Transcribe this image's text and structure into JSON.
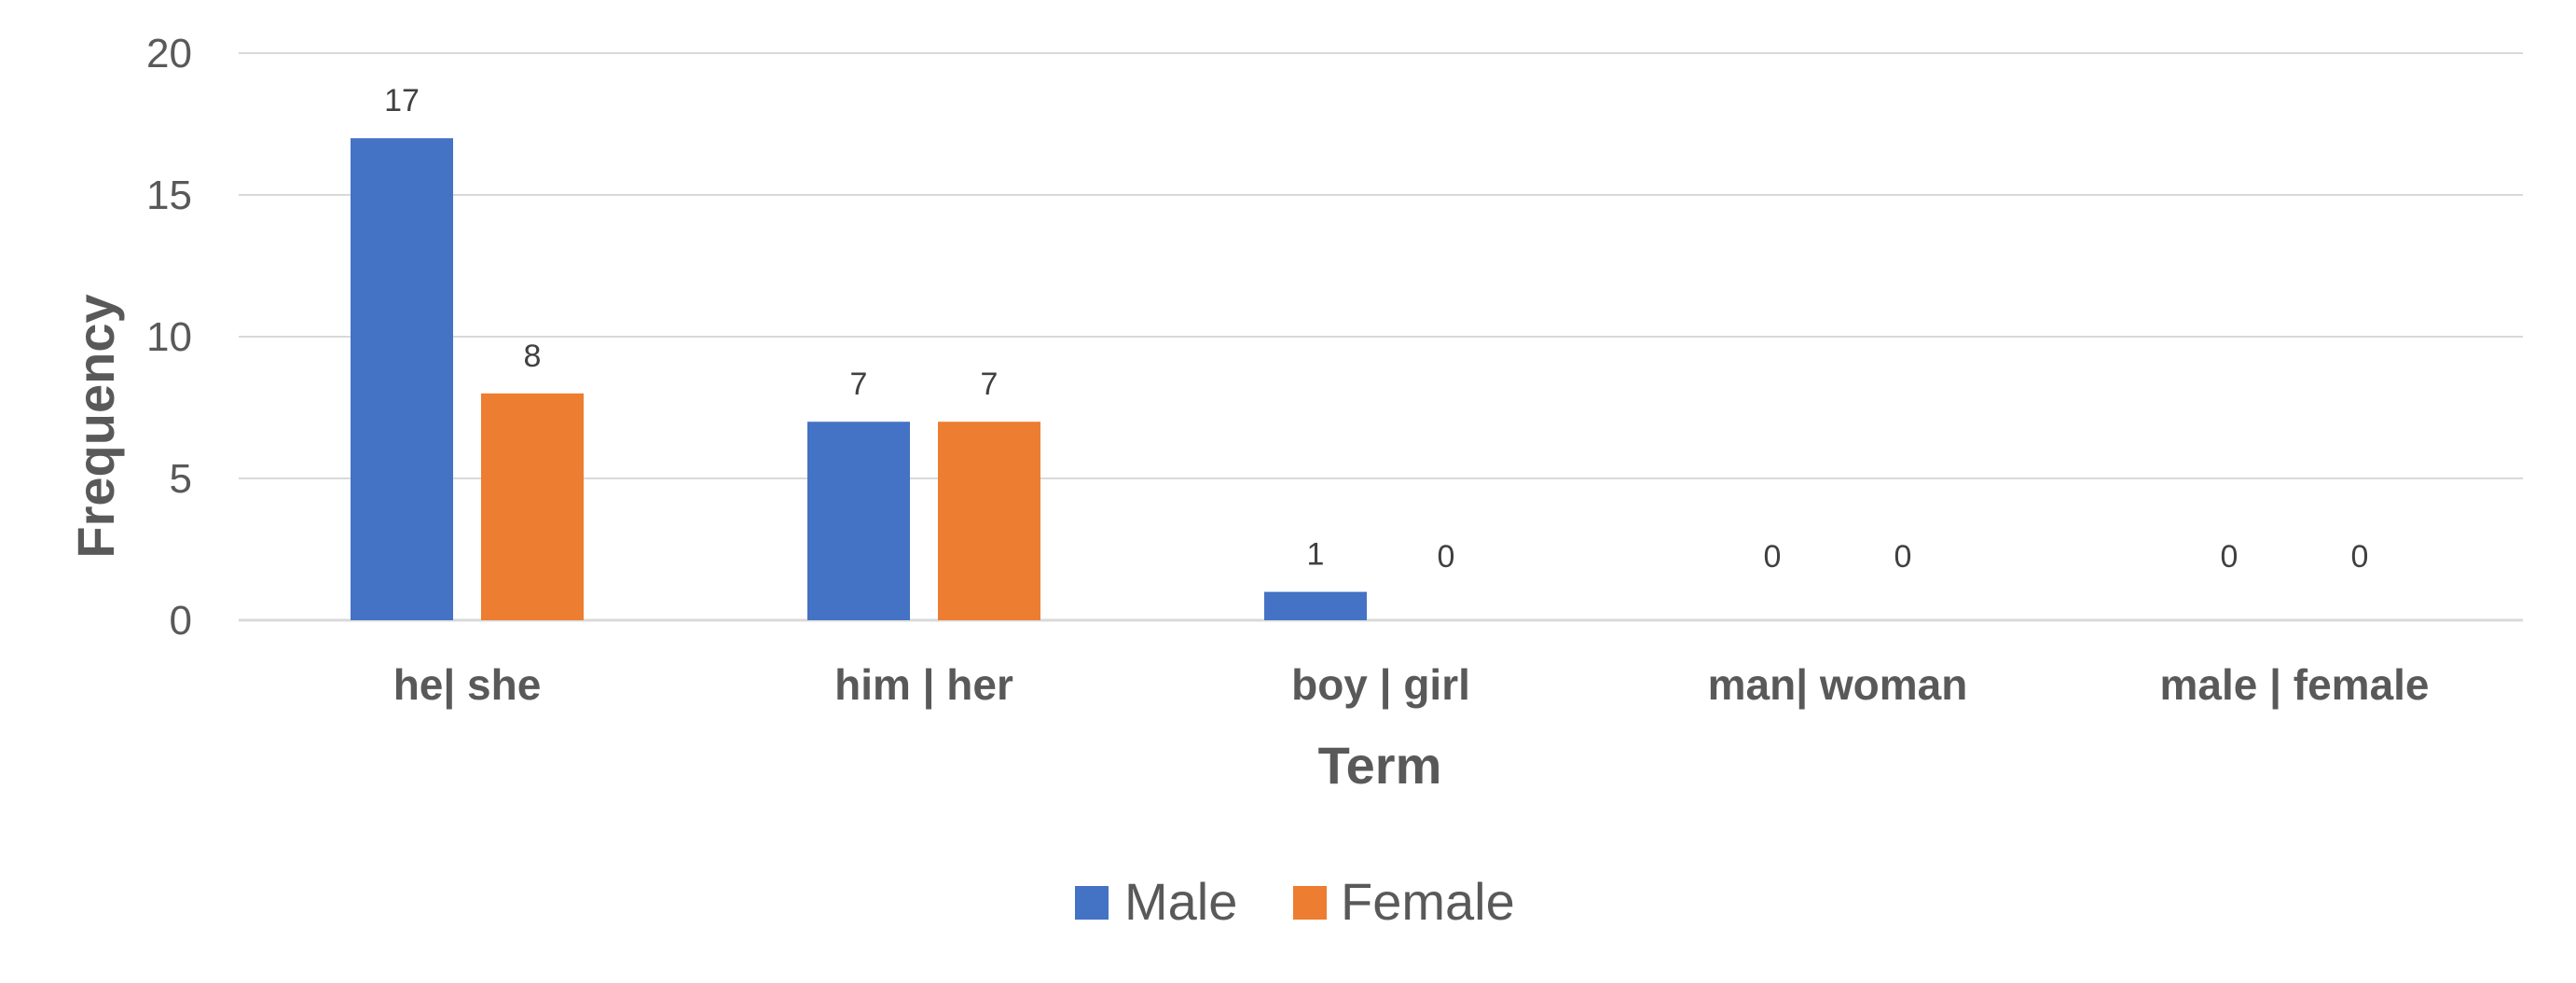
{
  "chart_data": {
    "type": "bar",
    "categories": [
      "he| she",
      "him | her",
      "boy | girl",
      "man| woman",
      "male | female"
    ],
    "series": [
      {
        "name": "Male",
        "values": [
          17,
          7,
          1,
          0,
          0
        ],
        "color": "#4472C4"
      },
      {
        "name": "Female",
        "values": [
          8,
          7,
          0,
          0,
          0
        ],
        "color": "#ED7D31"
      }
    ],
    "xlabel": "Term",
    "ylabel": "Frequency",
    "ylim": [
      0,
      20
    ],
    "yticks": [
      0,
      5,
      10,
      15,
      20
    ],
    "grid": true,
    "legend": "bottom"
  }
}
